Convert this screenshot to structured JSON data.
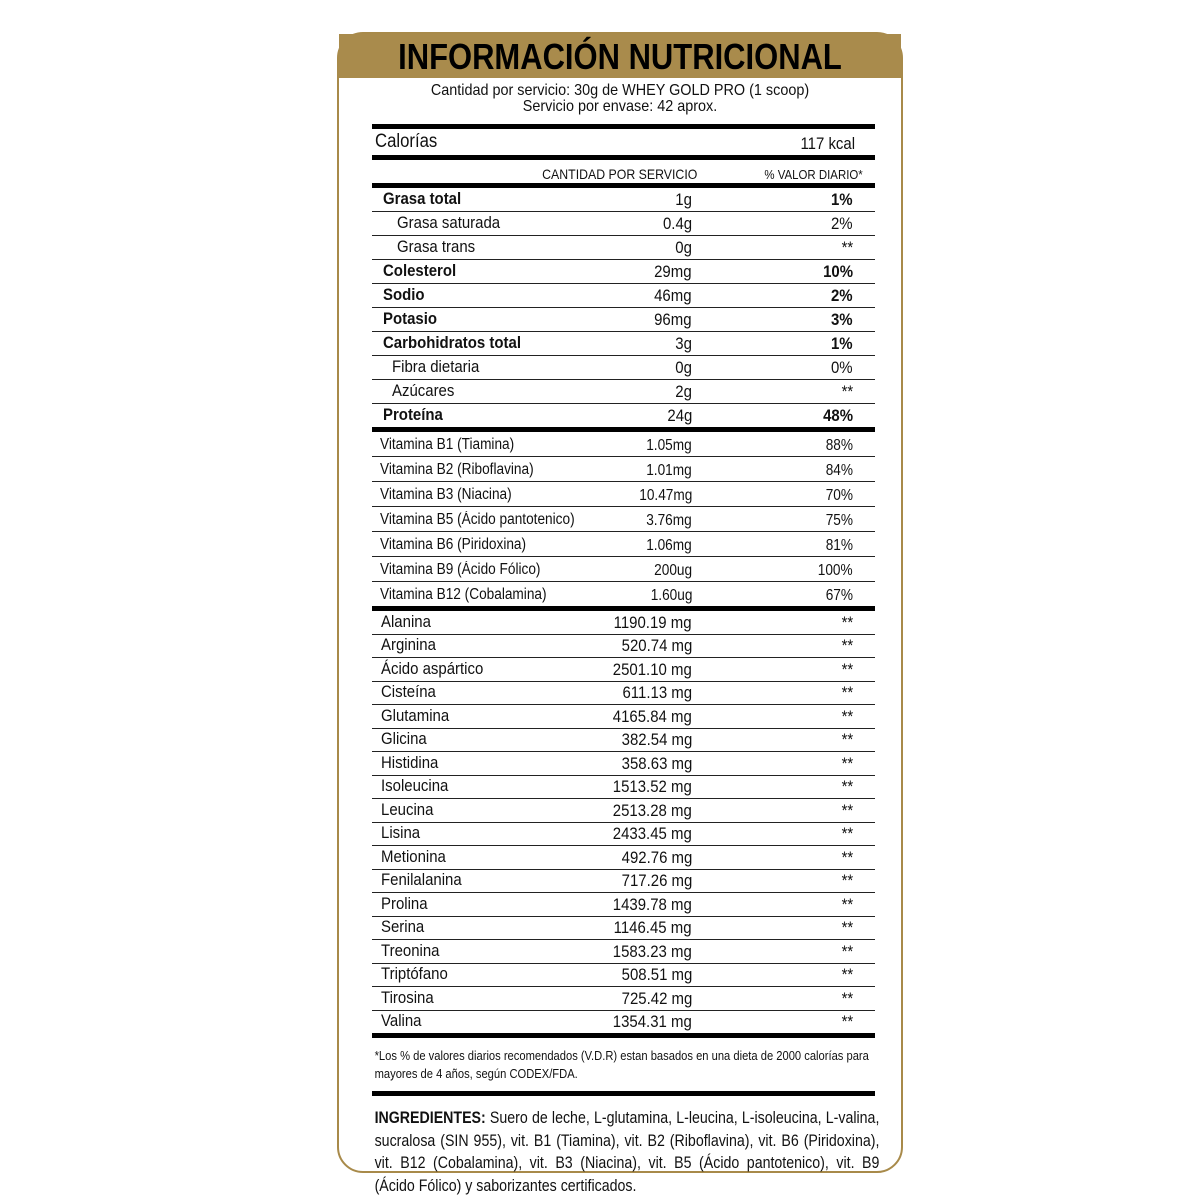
{
  "title": "INFORMACIÓN NUTRICIONAL",
  "serving": {
    "line1": "Cantidad por servicio: 30g de  WHEY GOLD PRO (1 scoop)",
    "line2": "Servicio por envase: 42 aprox."
  },
  "calories": {
    "label": "Calorías",
    "value": "117 kcal"
  },
  "columns": {
    "amount": "CANTIDAD POR SERVICIO",
    "dv": "% VALOR DIARIO*"
  },
  "macros": [
    {
      "name": "Grasa total",
      "amount": "1g",
      "dv": "1%",
      "bold": true,
      "indent": 0
    },
    {
      "name": "Grasa saturada",
      "amount": "0.4g",
      "dv": "2%",
      "bold": false,
      "indent": 14
    },
    {
      "name": "Grasa trans",
      "amount": "0g",
      "dv": "**",
      "bold": false,
      "indent": 14
    },
    {
      "name": "Colesterol",
      "amount": "29mg",
      "dv": "10%",
      "bold": true,
      "indent": 0
    },
    {
      "name": "Sodio",
      "amount": "46mg",
      "dv": "2%",
      "bold": true,
      "indent": 0
    },
    {
      "name": "Potasio",
      "amount": "96mg",
      "dv": "3%",
      "bold": true,
      "indent": 0
    },
    {
      "name": "Carbohidratos total",
      "amount": "3g",
      "dv": "1%",
      "bold": true,
      "indent": 0
    },
    {
      "name": "Fibra dietaria",
      "amount": "0g",
      "dv": "0%",
      "bold": false,
      "indent": 9
    },
    {
      "name": "Azúcares",
      "amount": "2g",
      "dv": "**",
      "bold": false,
      "indent": 9
    },
    {
      "name": "Proteína",
      "amount": "24g",
      "dv": "48%",
      "bold": true,
      "indent": 0
    }
  ],
  "vitamins": [
    {
      "name": "Vitamina B1 (Tiamina)",
      "amount": "1.05mg",
      "dv": "88%"
    },
    {
      "name": "Vitamina B2 (Riboflavina)",
      "amount": "1.01mg",
      "dv": "84%"
    },
    {
      "name": "Vitamina B3 (Niacina)",
      "amount": "10.47mg",
      "dv": "70%"
    },
    {
      "name": "Vitamina B5 (Ácido pantotenico)",
      "amount": "3.76mg",
      "dv": "75%"
    },
    {
      "name": "Vitamina B6 (Piridoxina)",
      "amount": "1.06mg",
      "dv": "81%"
    },
    {
      "name": "Vitamina B9 (Ácido Fólico)",
      "amount": "200ug",
      "dv": "100%"
    },
    {
      "name": "Vitamina B12 (Cobalamina)",
      "amount": "1.60ug",
      "dv": "67%"
    }
  ],
  "amino_acids": [
    {
      "name": "Alanina",
      "amount": "1190.19 mg",
      "dv": "**"
    },
    {
      "name": "Arginina",
      "amount": "520.74 mg",
      "dv": "**"
    },
    {
      "name": "Ácido aspártico",
      "amount": "2501.10 mg",
      "dv": "**"
    },
    {
      "name": "Cisteína",
      "amount": "611.13 mg",
      "dv": "**"
    },
    {
      "name": "Glutamina",
      "amount": "4165.84 mg",
      "dv": "**"
    },
    {
      "name": "Glicina",
      "amount": "382.54 mg",
      "dv": "**"
    },
    {
      "name": "Histidina",
      "amount": "358.63 mg",
      "dv": "**"
    },
    {
      "name": "Isoleucina",
      "amount": "1513.52 mg",
      "dv": "**"
    },
    {
      "name": "Leucina",
      "amount": "2513.28 mg",
      "dv": "**"
    },
    {
      "name": "Lisina",
      "amount": "2433.45 mg",
      "dv": "**"
    },
    {
      "name": "Metionina",
      "amount": "492.76 mg",
      "dv": "**"
    },
    {
      "name": "Fenilalanina",
      "amount": "717.26 mg",
      "dv": "**"
    },
    {
      "name": "Prolina",
      "amount": "1439.78 mg",
      "dv": "**"
    },
    {
      "name": "Serina",
      "amount": "1146.45 mg",
      "dv": "**"
    },
    {
      "name": "Treonina",
      "amount": "1583.23 mg",
      "dv": "**"
    },
    {
      "name": "Triptófano",
      "amount": "508.51 mg",
      "dv": "**"
    },
    {
      "name": "Tirosina",
      "amount": "725.42 mg",
      "dv": "**"
    },
    {
      "name": "Valina",
      "amount": "1354.31 mg",
      "dv": "**"
    }
  ],
  "footnote": "*Los % de valores diarios recomendados (V.D.R) estan basados en una dieta de 2000 calorías para mayores de 4 años, según CODEX/FDA.",
  "ingredients": {
    "label": "INGREDIENTES:",
    "text": " Suero de leche, L-glutamina, L-leucina, L-isoleucina, L-valina, sucralosa (SIN 955), vit. B1 (Tiamina), vit. B2 (Riboflavina), vit. B6 (Piridoxina), vit. B12 (Cobalamina), vit. B3 (Niacina), vit. B5 (Ácido pantotenico), vit. B9 (Ácido Fólico) y saborizantes certificados."
  },
  "colors": {
    "gold": "#a98b4c"
  }
}
